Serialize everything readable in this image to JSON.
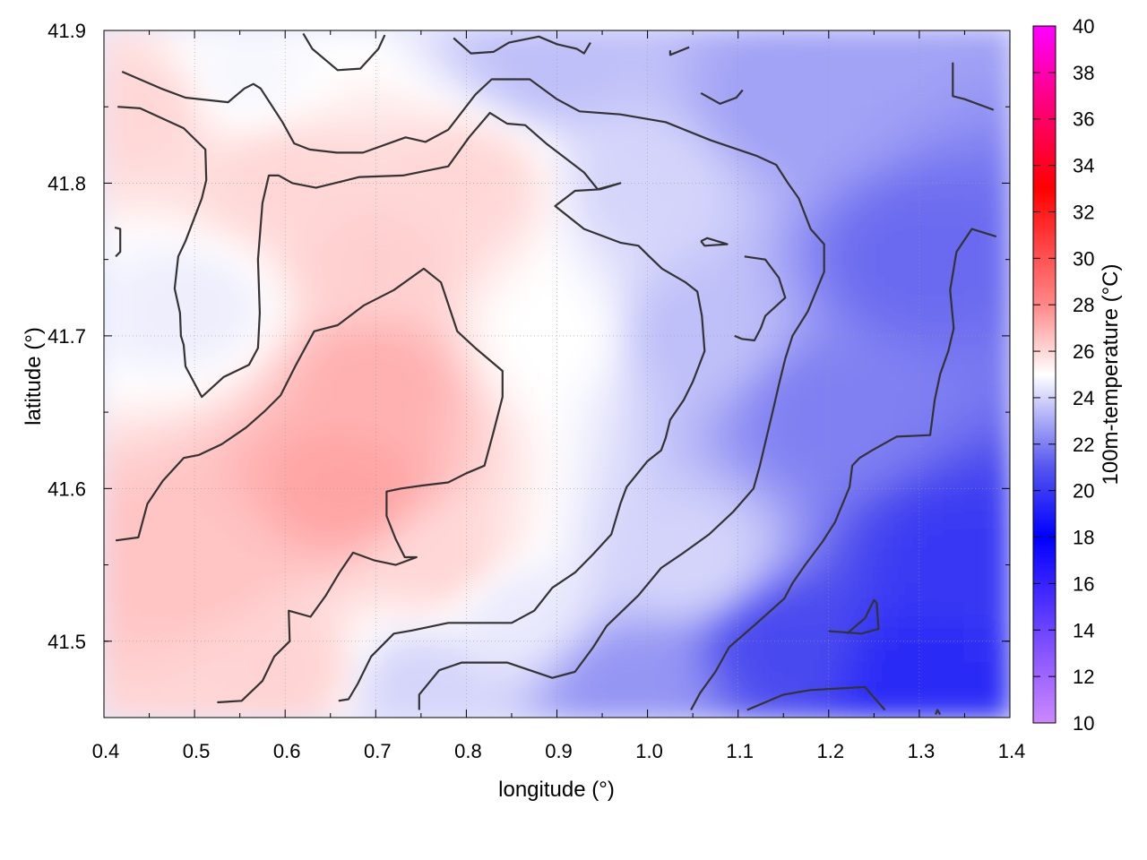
{
  "chart_data": {
    "type": "heatmap",
    "xlabel": "longitude (°)",
    "ylabel": "latitude (°)",
    "colorbar_label": "100m-temperature (°C)",
    "xlim": [
      0.4,
      1.4
    ],
    "ylim": [
      41.45,
      41.9
    ],
    "x_ticks": [
      "0.4",
      "0.5",
      "0.6",
      "0.7",
      "0.8",
      "0.9",
      "1.0",
      "1.1",
      "1.2",
      "1.3",
      "1.4"
    ],
    "x_tick_values": [
      0.4,
      0.5,
      0.6,
      0.7,
      0.8,
      0.9,
      1.0,
      1.1,
      1.2,
      1.3,
      1.4
    ],
    "y_ticks": [
      "41.5",
      "41.6",
      "41.7",
      "41.8",
      "41.9"
    ],
    "y_tick_values": [
      41.5,
      41.6,
      41.7,
      41.8,
      41.9
    ],
    "colorbar_range": [
      10,
      40
    ],
    "colorbar_ticks": [
      "10",
      "12",
      "14",
      "16",
      "18",
      "20",
      "22",
      "24",
      "26",
      "28",
      "30",
      "32",
      "34",
      "36",
      "38",
      "40"
    ],
    "colorbar_tick_values": [
      10,
      12,
      14,
      16,
      18,
      20,
      22,
      24,
      26,
      28,
      30,
      32,
      34,
      36,
      38,
      40
    ],
    "colormap_stops": [
      {
        "value": 10,
        "color": "#cc88ff"
      },
      {
        "value": 13,
        "color": "#8855ff"
      },
      {
        "value": 18,
        "color": "#0000ff"
      },
      {
        "value": 21,
        "color": "#5555ee"
      },
      {
        "value": 25,
        "color": "#ffffff"
      },
      {
        "value": 28,
        "color": "#ff8888"
      },
      {
        "value": 33,
        "color": "#ff0000"
      },
      {
        "value": 37,
        "color": "#ff0088"
      },
      {
        "value": 40,
        "color": "#ff00ff"
      }
    ],
    "grid": true,
    "field_samples": [
      {
        "x": 0.45,
        "y": 41.85,
        "t": 26.0
      },
      {
        "x": 0.55,
        "y": 41.87,
        "t": 24.8
      },
      {
        "x": 0.6,
        "y": 41.8,
        "t": 26.0
      },
      {
        "x": 0.5,
        "y": 41.72,
        "t": 24.6
      },
      {
        "x": 0.7,
        "y": 41.75,
        "t": 26.2
      },
      {
        "x": 0.8,
        "y": 41.8,
        "t": 26.0
      },
      {
        "x": 0.7,
        "y": 41.67,
        "t": 27.0
      },
      {
        "x": 0.67,
        "y": 41.6,
        "t": 27.3
      },
      {
        "x": 0.5,
        "y": 41.55,
        "t": 26.5
      },
      {
        "x": 0.6,
        "y": 41.48,
        "t": 26.1
      },
      {
        "x": 0.78,
        "y": 41.55,
        "t": 26.0
      },
      {
        "x": 0.9,
        "y": 41.7,
        "t": 25.0
      },
      {
        "x": 0.85,
        "y": 41.52,
        "t": 24.5
      },
      {
        "x": 0.75,
        "y": 41.47,
        "t": 24.0
      },
      {
        "x": 1.0,
        "y": 41.8,
        "t": 24.0
      },
      {
        "x": 1.05,
        "y": 41.7,
        "t": 23.5
      },
      {
        "x": 1.05,
        "y": 41.55,
        "t": 24.0
      },
      {
        "x": 1.15,
        "y": 41.85,
        "t": 22.8
      },
      {
        "x": 1.2,
        "y": 41.65,
        "t": 22.0
      },
      {
        "x": 1.15,
        "y": 41.5,
        "t": 20.6
      },
      {
        "x": 1.3,
        "y": 41.75,
        "t": 21.5
      },
      {
        "x": 1.35,
        "y": 41.55,
        "t": 20.0
      },
      {
        "x": 1.3,
        "y": 41.48,
        "t": 19.5
      },
      {
        "x": 0.98,
        "y": 41.47,
        "t": 22.5
      },
      {
        "x": 0.9,
        "y": 41.88,
        "t": 23.5
      }
    ],
    "contours": [
      [
        [
          0.42,
          41.873
        ],
        [
          0.463,
          41.862
        ],
        [
          0.49,
          41.856
        ],
        [
          0.537,
          41.853
        ],
        [
          0.555,
          41.862
        ],
        [
          0.565,
          41.865
        ],
        [
          0.573,
          41.862
        ],
        [
          0.597,
          41.84
        ],
        [
          0.61,
          41.826
        ],
        [
          0.627,
          41.822
        ],
        [
          0.657,
          41.82
        ],
        [
          0.686,
          41.82
        ],
        [
          0.733,
          41.83
        ],
        [
          0.755,
          41.827
        ],
        [
          0.78,
          41.835
        ],
        [
          0.81,
          41.858
        ],
        [
          0.828,
          41.868
        ],
        [
          0.87,
          41.868
        ],
        [
          0.9,
          41.855
        ],
        [
          0.925,
          41.847
        ],
        [
          0.97,
          41.845
        ],
        [
          1.02,
          41.84
        ],
        [
          1.07,
          41.828
        ],
        [
          1.12,
          41.818
        ],
        [
          1.142,
          41.812
        ],
        [
          1.155,
          41.8
        ],
        [
          1.167,
          41.79
        ],
        [
          1.18,
          41.77
        ],
        [
          1.195,
          41.76
        ],
        [
          1.195,
          41.742
        ],
        [
          1.177,
          41.716
        ],
        [
          1.16,
          41.7
        ],
        [
          1.152,
          41.685
        ],
        [
          1.145,
          41.668
        ],
        [
          1.14,
          41.655
        ],
        [
          1.138,
          41.65
        ],
        [
          1.13,
          41.63
        ],
        [
          1.124,
          41.615
        ],
        [
          1.117,
          41.6
        ],
        [
          1.095,
          41.585
        ],
        [
          1.068,
          41.57
        ],
        [
          1.04,
          41.558
        ],
        [
          1.015,
          41.548
        ],
        [
          0.99,
          41.53
        ],
        [
          0.955,
          41.51
        ],
        [
          0.94,
          41.496
        ],
        [
          0.92,
          41.48
        ],
        [
          0.895,
          41.476
        ],
        [
          0.845,
          41.486
        ],
        [
          0.795,
          41.486
        ],
        [
          0.77,
          41.481
        ],
        [
          0.748,
          41.465
        ],
        [
          0.748,
          41.455
        ]
      ],
      [
        [
          0.415,
          41.85
        ],
        [
          0.44,
          41.849
        ],
        [
          0.488,
          41.836
        ],
        [
          0.512,
          41.822
        ],
        [
          0.513,
          41.802
        ],
        [
          0.508,
          41.79
        ],
        [
          0.49,
          41.762
        ],
        [
          0.482,
          41.752
        ],
        [
          0.478,
          41.731
        ],
        [
          0.484,
          41.715
        ],
        [
          0.485,
          41.7
        ],
        [
          0.488,
          41.694
        ],
        [
          0.49,
          41.68
        ],
        [
          0.508,
          41.66
        ],
        [
          0.532,
          41.673
        ],
        [
          0.56,
          41.681
        ],
        [
          0.57,
          41.692
        ],
        [
          0.572,
          41.715
        ],
        [
          0.57,
          41.75
        ],
        [
          0.575,
          41.787
        ],
        [
          0.582,
          41.805
        ],
        [
          0.593,
          41.805
        ],
        [
          0.608,
          41.8
        ],
        [
          0.634,
          41.797
        ],
        [
          0.682,
          41.804
        ],
        [
          0.73,
          41.805
        ],
        [
          0.78,
          41.811
        ],
        [
          0.803,
          41.83
        ],
        [
          0.826,
          41.846
        ],
        [
          0.845,
          41.839
        ],
        [
          0.865,
          41.838
        ],
        [
          0.888,
          41.826
        ],
        [
          0.93,
          41.807
        ],
        [
          0.945,
          41.796
        ],
        [
          0.97,
          41.8
        ],
        [
          0.948,
          41.796
        ],
        [
          0.92,
          41.795
        ],
        [
          0.898,
          41.785
        ],
        [
          0.93,
          41.77
        ],
        [
          0.97,
          41.761
        ],
        [
          0.99,
          41.759
        ],
        [
          1.002,
          41.752
        ],
        [
          1.016,
          41.744
        ],
        [
          1.042,
          41.735
        ],
        [
          1.055,
          41.729
        ],
        [
          1.06,
          41.713
        ],
        [
          1.063,
          41.69
        ],
        [
          1.05,
          41.67
        ],
        [
          1.04,
          41.658
        ],
        [
          1.025,
          41.645
        ],
        [
          1.02,
          41.633
        ],
        [
          1.015,
          41.625
        ],
        [
          1.0,
          41.618
        ],
        [
          0.977,
          41.601
        ],
        [
          0.97,
          41.59
        ],
        [
          0.96,
          41.57
        ],
        [
          0.94,
          41.557
        ],
        [
          0.92,
          41.545
        ],
        [
          0.895,
          41.535
        ],
        [
          0.875,
          41.52
        ],
        [
          0.85,
          41.512
        ],
        [
          0.78,
          41.512
        ],
        [
          0.74,
          41.507
        ],
        [
          0.72,
          41.505
        ],
        [
          0.695,
          41.49
        ],
        [
          0.68,
          41.472
        ],
        [
          0.67,
          41.462
        ],
        [
          0.659,
          41.461
        ]
      ],
      [
        [
          0.413,
          41.566
        ],
        [
          0.438,
          41.568
        ],
        [
          0.448,
          41.59
        ],
        [
          0.465,
          41.605
        ],
        [
          0.488,
          41.62
        ],
        [
          0.505,
          41.622
        ],
        [
          0.53,
          41.629
        ],
        [
          0.557,
          41.64
        ],
        [
          0.578,
          41.651
        ],
        [
          0.595,
          41.661
        ],
        [
          0.612,
          41.681
        ],
        [
          0.632,
          41.703
        ],
        [
          0.658,
          41.707
        ],
        [
          0.687,
          41.72
        ],
        [
          0.72,
          41.73
        ],
        [
          0.753,
          41.744
        ],
        [
          0.772,
          41.735
        ],
        [
          0.79,
          41.703
        ],
        [
          0.81,
          41.692
        ],
        [
          0.84,
          41.677
        ],
        [
          0.84,
          41.66
        ],
        [
          0.83,
          41.637
        ],
        [
          0.82,
          41.615
        ],
        [
          0.8,
          41.61
        ],
        [
          0.78,
          41.604
        ],
        [
          0.752,
          41.602
        ],
        [
          0.728,
          41.6
        ],
        [
          0.712,
          41.598
        ],
        [
          0.712,
          41.582
        ],
        [
          0.722,
          41.567
        ],
        [
          0.732,
          41.555
        ],
        [
          0.745,
          41.555
        ],
        [
          0.722,
          41.55
        ],
        [
          0.698,
          41.553
        ],
        [
          0.675,
          41.558
        ],
        [
          0.66,
          41.545
        ],
        [
          0.645,
          41.53
        ],
        [
          0.628,
          41.516
        ],
        [
          0.604,
          41.52
        ],
        [
          0.605,
          41.5
        ],
        [
          0.588,
          41.49
        ],
        [
          0.575,
          41.474
        ],
        [
          0.552,
          41.461
        ],
        [
          0.525,
          41.46
        ]
      ],
      [
        [
          1.107,
          41.752
        ],
        [
          1.13,
          41.75
        ],
        [
          1.145,
          41.738
        ],
        [
          1.152,
          41.725
        ],
        [
          1.13,
          41.713
        ],
        [
          1.125,
          41.705
        ],
        [
          1.118,
          41.697
        ],
        [
          1.104,
          41.698
        ],
        [
          1.096,
          41.7
        ]
      ],
      [
        [
          1.059,
          41.859
        ],
        [
          1.08,
          41.852
        ],
        [
          1.098,
          41.856
        ],
        [
          1.105,
          41.861
        ]
      ],
      [
        [
          1.337,
          41.879
        ],
        [
          1.337,
          41.857
        ],
        [
          1.35,
          41.855
        ],
        [
          1.382,
          41.848
        ]
      ],
      [
        [
          1.385,
          41.765
        ],
        [
          1.358,
          41.77
        ],
        [
          1.341,
          41.755
        ],
        [
          1.334,
          41.73
        ],
        [
          1.338,
          41.705
        ],
        [
          1.332,
          41.69
        ],
        [
          1.323,
          41.675
        ],
        [
          1.317,
          41.658
        ],
        [
          1.312,
          41.635
        ],
        [
          1.275,
          41.634
        ],
        [
          1.248,
          41.625
        ],
        [
          1.234,
          41.62
        ],
        [
          1.226,
          41.615
        ],
        [
          1.223,
          41.601
        ],
        [
          1.207,
          41.578
        ],
        [
          1.193,
          41.565
        ],
        [
          1.174,
          41.55
        ],
        [
          1.16,
          41.538
        ],
        [
          1.151,
          41.528
        ],
        [
          1.136,
          41.52
        ],
        [
          1.121,
          41.512
        ],
        [
          1.09,
          41.496
        ],
        [
          1.075,
          41.48
        ],
        [
          1.058,
          41.466
        ],
        [
          1.048,
          41.455
        ]
      ],
      [
        [
          0.413,
          41.752
        ],
        [
          0.418,
          41.755
        ],
        [
          0.418,
          41.77
        ],
        [
          0.412,
          41.771
        ]
      ],
      [
        [
          1.059,
          41.762
        ],
        [
          1.066,
          41.764
        ],
        [
          1.088,
          41.76
        ],
        [
          1.063,
          41.759
        ],
        [
          1.059,
          41.762
        ]
      ],
      [
        [
          0.62,
          41.898
        ],
        [
          0.63,
          41.888
        ],
        [
          0.658,
          41.874
        ],
        [
          0.683,
          41.875
        ],
        [
          0.703,
          41.888
        ],
        [
          0.71,
          41.897
        ]
      ],
      [
        [
          0.786,
          41.895
        ],
        [
          0.805,
          41.885
        ],
        [
          0.83,
          41.886
        ],
        [
          0.847,
          41.892
        ],
        [
          0.88,
          41.896
        ],
        [
          0.9,
          41.891
        ],
        [
          0.922,
          41.888
        ],
        [
          0.93,
          41.885
        ],
        [
          0.937,
          41.892
        ]
      ],
      [
        [
          1.025,
          41.887
        ],
        [
          1.025,
          41.884
        ],
        [
          1.046,
          41.889
        ]
      ],
      [
        [
          1.2,
          41.5066
        ],
        [
          1.236,
          41.505
        ],
        [
          1.255,
          41.508
        ],
        [
          1.253,
          41.525
        ],
        [
          1.25,
          41.527
        ],
        [
          1.24,
          41.515
        ],
        [
          1.22,
          41.505
        ]
      ],
      [
        [
          1.11,
          41.455
        ],
        [
          1.15,
          41.465
        ],
        [
          1.18,
          41.468
        ],
        [
          1.24,
          41.47
        ],
        [
          1.262,
          41.455
        ]
      ],
      [
        [
          1.318,
          41.452
        ],
        [
          1.32,
          41.455
        ],
        [
          1.323,
          41.452
        ]
      ]
    ]
  }
}
